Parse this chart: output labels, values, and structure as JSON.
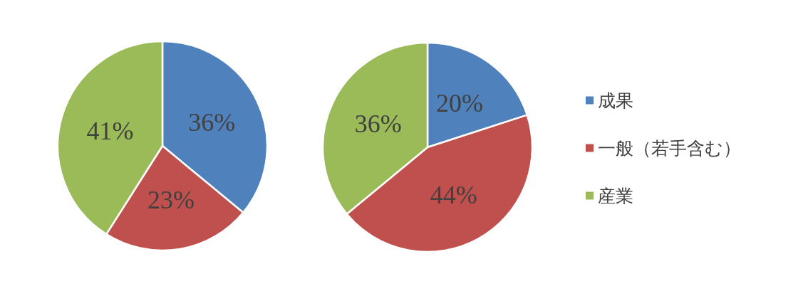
{
  "chart_data": [
    {
      "type": "pie",
      "values": [
        36,
        23,
        41
      ],
      "colors": [
        "#4f81bd",
        "#c0504d",
        "#9bbb59"
      ],
      "value_labels": [
        "36%",
        "23%",
        "41%"
      ],
      "legend": false
    },
    {
      "type": "pie",
      "categories": [
        "成果",
        "一般（若手含む）",
        "産業"
      ],
      "values": [
        20,
        44,
        36
      ],
      "colors": [
        "#4f81bd",
        "#c0504d",
        "#9bbb59"
      ],
      "value_labels": [
        "20%",
        "44%",
        "36%"
      ],
      "legend": "right"
    }
  ]
}
